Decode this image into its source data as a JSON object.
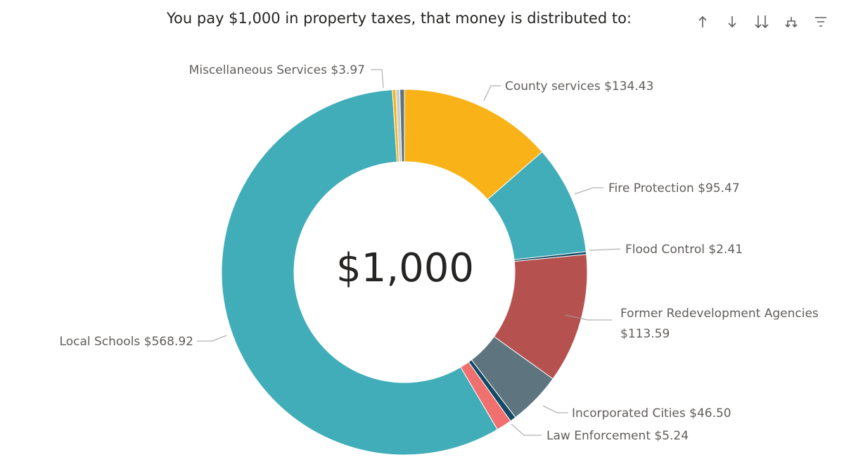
{
  "header": {
    "title": "You pay $1,000 in property taxes, that money is distributed to:"
  },
  "toolbar": {
    "icons": [
      "sort-ascending-icon",
      "sort-descending-icon",
      "expand-all-down-icon",
      "drill-down-icon",
      "filter-icon"
    ]
  },
  "chart_data": {
    "type": "donut",
    "title": "You pay $1,000 in property taxes, that money is distributed to:",
    "center_label": "$1,000",
    "total": 1000,
    "legend": "none (data labels with leader lines)",
    "slices": [
      {
        "name": "County services",
        "value": 134.43,
        "label": "County services $134.43",
        "color": "#F9B319"
      },
      {
        "name": "Fire Protection",
        "value": 95.47,
        "label": "Fire Protection $95.47",
        "color": "#41ADB8"
      },
      {
        "name": "Flood Control",
        "value": 2.41,
        "label": "Flood Control $2.41",
        "color": "#134A66"
      },
      {
        "name": "Former Redevelopment Agencies",
        "value": 113.59,
        "label": "Former Redevelopment Agencies $113.59",
        "color": "#B55250"
      },
      {
        "name": "Incorporated Cities",
        "value": 46.5,
        "label": "Incorporated Cities $46.50",
        "color": "#5E757F"
      },
      {
        "name": "Law Enforcement",
        "value": 5.24,
        "label": "Law Enforcement $5.24",
        "color": "#134A66"
      },
      {
        "name": "(unlabeled)",
        "value": 13.5,
        "label": "",
        "color": "#F07070"
      },
      {
        "name": "Local Schools",
        "value": 568.92,
        "label": "Local Schools $568.92",
        "color": "#41ADB8"
      },
      {
        "name": "(unlabeled)",
        "value": 3.0,
        "label": "",
        "color": "#F9B319"
      },
      {
        "name": "(unlabeled)",
        "value": 3.5,
        "label": "",
        "color": "#C9CED0"
      },
      {
        "name": "Miscellaneous Services",
        "value": 3.97,
        "label": "Miscellaneous Services $3.97",
        "color": "#5E757F"
      }
    ]
  },
  "labels": {
    "county": "County services $134.43",
    "fire": "Fire Protection $95.47",
    "flood": "Flood Control $2.41",
    "redev_line1": "Former Redevelopment Agencies",
    "redev_line2": "$113.59",
    "cities": "Incorporated Cities $46.50",
    "law": "Law Enforcement $5.24",
    "schools": "Local Schools $568.92",
    "misc": "Miscellaneous Services $3.97",
    "center": "$1,000"
  }
}
